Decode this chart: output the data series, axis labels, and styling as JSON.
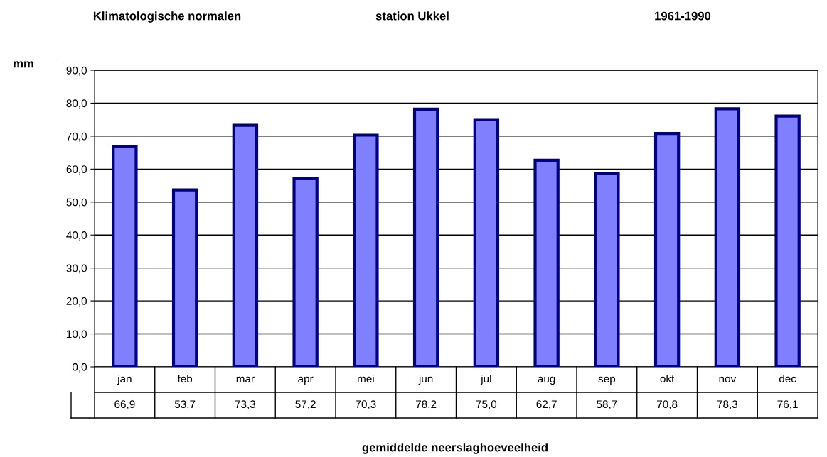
{
  "chart_data": {
    "type": "bar",
    "title": "Klimatologische normalen",
    "subtitle": "station Ukkel",
    "annotations": [
      "1961-1990"
    ],
    "ylabel": "mm",
    "xlabel": "gemiddelde neerslaghoeveelheid",
    "categories": [
      "jan",
      "feb",
      "mar",
      "apr",
      "mei",
      "jun",
      "jul",
      "aug",
      "sep",
      "okt",
      "nov",
      "dec"
    ],
    "values": [
      66.9,
      53.7,
      73.3,
      57.2,
      70.3,
      78.2,
      75.0,
      62.7,
      58.7,
      70.8,
      78.3,
      76.1
    ],
    "value_labels": [
      "66,9",
      "53,7",
      "73,3",
      "57,2",
      "70,3",
      "78,2",
      "75,0",
      "62,7",
      "58,7",
      "70,8",
      "78,3",
      "76,1"
    ],
    "color": "#8080ff",
    "ylim": [
      0,
      90
    ],
    "yticks": [
      {
        "value": 0,
        "label": "0,0"
      },
      {
        "value": 10,
        "label": "10,0"
      },
      {
        "value": 20,
        "label": "20,0"
      },
      {
        "value": 30,
        "label": "30,0"
      },
      {
        "value": 40,
        "label": "40,0"
      },
      {
        "value": 50,
        "label": "50,0"
      },
      {
        "value": 60,
        "label": "60,0"
      },
      {
        "value": 70,
        "label": "70,0"
      },
      {
        "value": 80,
        "label": "80,0"
      },
      {
        "value": 90,
        "label": "90,0"
      }
    ],
    "grid": "y",
    "legend": false
  }
}
